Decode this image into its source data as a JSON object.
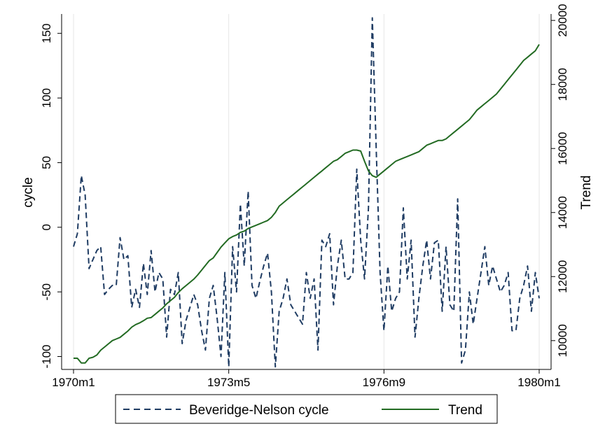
{
  "chart_data": {
    "type": "line",
    "x_axis": {
      "tick_labels": [
        "1970m1",
        "1973m5",
        "1976m9",
        "1980m1"
      ],
      "tick_months": [
        0,
        40,
        80,
        120
      ],
      "range_months": [
        0,
        120
      ],
      "gridlines": true
    },
    "y_left": {
      "label": "cycle",
      "range": [
        -110,
        165
      ],
      "ticks": [
        -100,
        -50,
        0,
        50,
        100,
        150
      ],
      "tick_labels": [
        "-100",
        "-50",
        "0",
        "50",
        "100",
        "150"
      ]
    },
    "y_right": {
      "label": "Trend",
      "range": [
        9100,
        20200
      ],
      "ticks": [
        10000,
        12000,
        14000,
        16000,
        18000,
        20000
      ],
      "tick_labels": [
        "10000",
        "12000",
        "14000",
        "16000",
        "18000",
        "20000"
      ]
    },
    "legend": {
      "placement": "bottom",
      "border": true
    },
    "series": [
      {
        "name": "Beveridge-Nelson cycle",
        "axis": "left",
        "style": "dashed",
        "color": "#1f3c63",
        "x_start_month": 0,
        "values": [
          -15,
          -5,
          40,
          25,
          -32,
          -25,
          -18,
          -15,
          -52,
          -48,
          -45,
          -45,
          -8,
          -25,
          -22,
          -62,
          -48,
          -62,
          -28,
          -52,
          -18,
          -50,
          -35,
          -40,
          -85,
          -48,
          -52,
          -35,
          -90,
          -72,
          -62,
          -52,
          -60,
          -80,
          -95,
          -55,
          -45,
          -70,
          -100,
          -35,
          -108,
          -15,
          -50,
          18,
          -30,
          28,
          -45,
          -55,
          -42,
          -30,
          -20,
          -50,
          -108,
          -65,
          -55,
          -40,
          -60,
          -65,
          -70,
          -75,
          -35,
          -55,
          -40,
          -95,
          -10,
          -15,
          -5,
          -60,
          -30,
          -10,
          -40,
          -40,
          -35,
          45,
          -10,
          -40,
          15,
          162,
          60,
          -35,
          -80,
          -30,
          -65,
          -55,
          -50,
          15,
          -40,
          -10,
          -85,
          -55,
          -30,
          -10,
          -40,
          -12,
          -10,
          -65,
          -15,
          -60,
          -65,
          22,
          -105,
          -95,
          -50,
          -75,
          -55,
          -35,
          -15,
          -45,
          -30,
          -40,
          -50,
          -45,
          -35,
          -80,
          -80,
          -55,
          -45,
          -30,
          -65,
          -35,
          -55
        ]
      },
      {
        "name": "Trend",
        "axis": "right",
        "style": "solid",
        "color": "#236b23",
        "x_start_month": 0,
        "values": [
          9450,
          9450,
          9300,
          9300,
          9450,
          9480,
          9550,
          9700,
          9800,
          9900,
          10000,
          10050,
          10100,
          10200,
          10300,
          10420,
          10500,
          10550,
          10620,
          10700,
          10720,
          10820,
          10920,
          11020,
          11150,
          11250,
          11350,
          11500,
          11620,
          11720,
          11820,
          11920,
          12050,
          12200,
          12350,
          12500,
          12580,
          12750,
          12920,
          13050,
          13180,
          13250,
          13300,
          13380,
          13420,
          13500,
          13550,
          13600,
          13650,
          13700,
          13750,
          13850,
          14000,
          14200,
          14300,
          14400,
          14500,
          14600,
          14700,
          14800,
          14900,
          15000,
          15100,
          15200,
          15300,
          15400,
          15500,
          15600,
          15650,
          15750,
          15850,
          15900,
          15950,
          15950,
          15920,
          15600,
          15300,
          15150,
          15100,
          15200,
          15300,
          15400,
          15500,
          15600,
          15650,
          15700,
          15750,
          15800,
          15850,
          15900,
          16000,
          16100,
          16150,
          16200,
          16250,
          16250,
          16300,
          16400,
          16500,
          16600,
          16700,
          16800,
          16900,
          17050,
          17200,
          17300,
          17400,
          17500,
          17600,
          17700,
          17850,
          18000,
          18150,
          18300,
          18450,
          18600,
          18750,
          18850,
          18950,
          19050,
          19250
        ]
      }
    ]
  }
}
